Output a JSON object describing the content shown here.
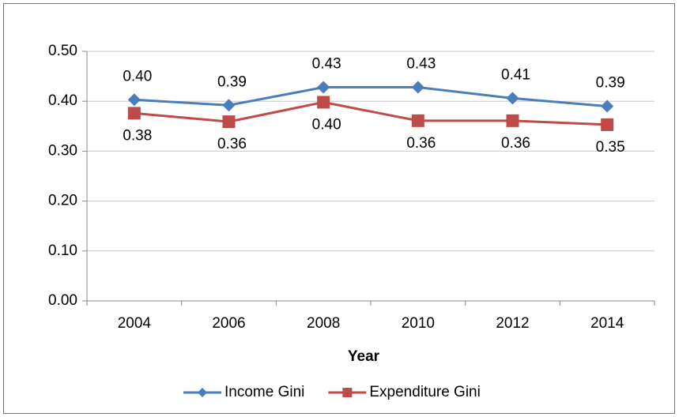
{
  "chart_data": {
    "type": "line",
    "x_label": "Year",
    "categories": [
      "2004",
      "2006",
      "2008",
      "2010",
      "2012",
      "2014"
    ],
    "series": [
      {
        "name": "Income Gini",
        "color": "#4a7ebb",
        "marker": "diamond",
        "values": [
          0.403,
          0.392,
          0.428,
          0.428,
          0.406,
          0.39
        ],
        "value_labels": [
          "0.40",
          "0.39",
          "0.43",
          "0.43",
          "0.41",
          "0.39"
        ]
      },
      {
        "name": "Expenditure Gini",
        "color": "#be4b48",
        "marker": "square",
        "values": [
          0.376,
          0.359,
          0.398,
          0.361,
          0.361,
          0.353
        ],
        "value_labels": [
          "0.38",
          "0.36",
          "0.40",
          "0.36",
          "0.36",
          "0.35"
        ]
      }
    ],
    "ylim": [
      0,
      0.5
    ],
    "yticks": [
      {
        "value": 0,
        "label": "0.00"
      },
      {
        "value": 0.1,
        "label": "0.10"
      },
      {
        "value": 0.2,
        "label": "0.20"
      },
      {
        "value": 0.3,
        "label": "0.30"
      },
      {
        "value": 0.4,
        "label": "0.40"
      },
      {
        "value": 0.5,
        "label": "0.50"
      }
    ],
    "grid": true,
    "legend": "bottom"
  }
}
